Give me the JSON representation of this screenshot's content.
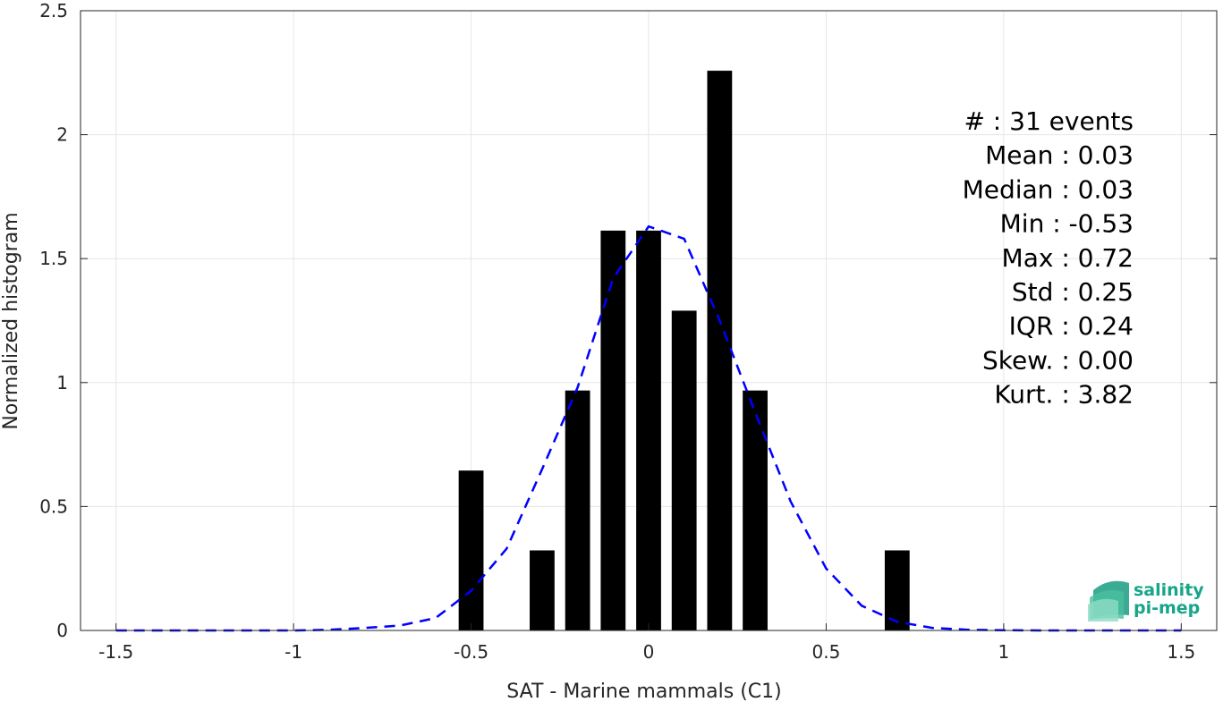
{
  "chart_data": {
    "type": "bar",
    "title": "",
    "xlabel": "SAT - Marine mammals (C1)",
    "ylabel": "Normalized histogram",
    "xlim": [
      -1.6,
      1.6
    ],
    "ylim": [
      0,
      2.5
    ],
    "xticks": [
      -1.5,
      -1,
      -0.5,
      0,
      0.5,
      1,
      1.5
    ],
    "xtick_labels": [
      "-1.5",
      "-1",
      "-0.5",
      "0",
      "0.5",
      "1",
      "1.5"
    ],
    "yticks": [
      0,
      0.5,
      1,
      1.5,
      2,
      2.5
    ],
    "ytick_labels": [
      "0",
      "0.5",
      "1",
      "1.5",
      "2",
      "2.5"
    ],
    "grid": true,
    "bar_width": 0.07,
    "bars": {
      "centers": [
        -0.5,
        -0.3,
        -0.2,
        -0.1,
        0.0,
        0.1,
        0.2,
        0.3,
        0.7
      ],
      "values": [
        0.645,
        0.323,
        0.968,
        1.613,
        1.613,
        1.29,
        2.258,
        0.968,
        0.323
      ],
      "color": "#000000"
    },
    "fit_curve": {
      "style": "dashed",
      "color": "#0000ff",
      "x": [
        -1.5,
        -1.4,
        -1.3,
        -1.2,
        -1.1,
        -1.0,
        -0.9,
        -0.8,
        -0.7,
        -0.6,
        -0.5,
        -0.4,
        -0.3,
        -0.2,
        -0.1,
        0.0,
        0.1,
        0.2,
        0.3,
        0.4,
        0.5,
        0.6,
        0.7,
        0.8,
        0.9,
        1.0,
        1.1,
        1.2,
        1.3,
        1.4,
        1.5
      ],
      "y": [
        0,
        0,
        0,
        0,
        0,
        0,
        0.003,
        0.01,
        0.02,
        0.05,
        0.16,
        0.33,
        0.65,
        0.98,
        1.42,
        1.63,
        1.58,
        1.25,
        0.88,
        0.52,
        0.25,
        0.1,
        0.035,
        0.01,
        0.003,
        0.001,
        0,
        0,
        0,
        0,
        0
      ]
    },
    "annotations": [
      "#  : 31 events",
      "Mean : 0.03",
      "Median : 0.03",
      "Min : -0.53",
      "Max : 0.72",
      "Std : 0.25",
      "IQR : 0.24",
      "Skew. : 0.00",
      "Kurt. : 3.82"
    ]
  },
  "logo": {
    "line1": "salinity",
    "line2": "pi-mep",
    "color": "#17a589"
  }
}
